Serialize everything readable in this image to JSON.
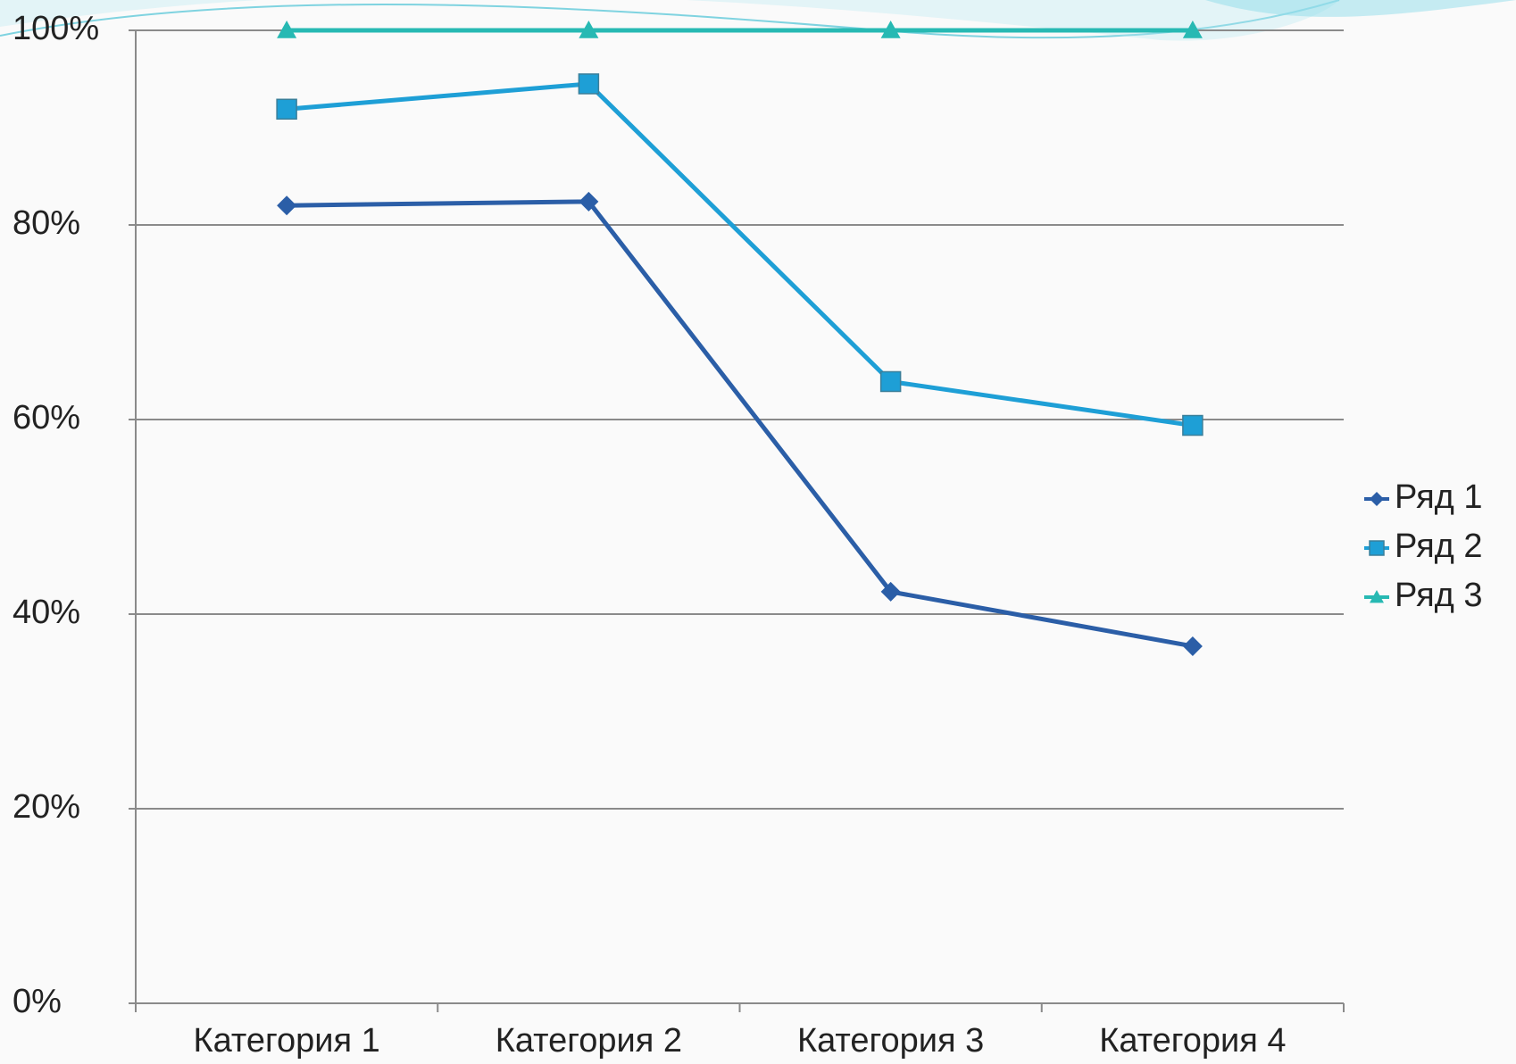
{
  "chart_data": {
    "type": "line",
    "categories": [
      "Категория 1",
      "Категория 2",
      "Категория 3",
      "Категория 4"
    ],
    "series": [
      {
        "name": "Ряд 1",
        "color": "#2b5ea7",
        "marker": "diamond",
        "values": [
          82.0,
          82.4,
          42.3,
          36.7
        ]
      },
      {
        "name": "Ряд 2",
        "color": "#1e9fd6",
        "marker": "square",
        "values": [
          91.9,
          94.5,
          63.9,
          59.4
        ]
      },
      {
        "name": "Ряд 3",
        "color": "#27b9b3",
        "marker": "triangle",
        "values": [
          100,
          100,
          100,
          100
        ]
      }
    ],
    "ylim": [
      0,
      100
    ],
    "yticks": [
      {
        "value": 0,
        "label": "0%"
      },
      {
        "value": 20,
        "label": "20%"
      },
      {
        "value": 40,
        "label": "40%"
      },
      {
        "value": 60,
        "label": "60%"
      },
      {
        "value": 80,
        "label": "80%"
      },
      {
        "value": 100,
        "label": "100%"
      }
    ],
    "grid": true,
    "legend": "right"
  }
}
